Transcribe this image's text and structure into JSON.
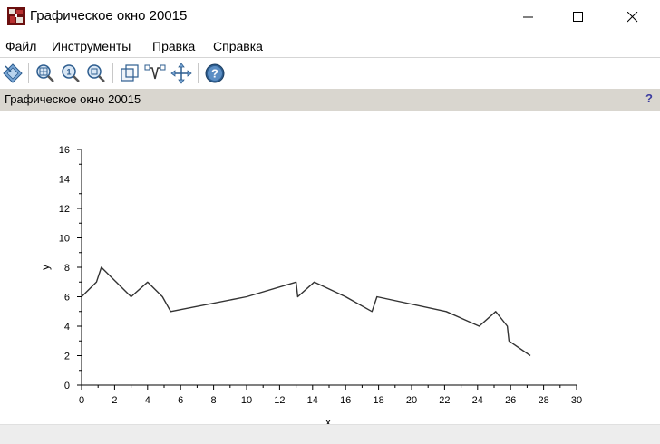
{
  "window": {
    "title": "Графическое окно 20015"
  },
  "menu": {
    "items": [
      "Файл",
      "Инструменты",
      "Правка",
      "Справка"
    ]
  },
  "toolbar": {
    "icons": [
      "select-icon",
      "zoom-region-icon",
      "zoom-restore-icon",
      "zoom-icon",
      "rotate-icon",
      "datatip-icon",
      "pan-icon",
      "help-icon"
    ]
  },
  "figure": {
    "title": "Графическое окно 20015",
    "help_label": "?"
  },
  "chart_data": {
    "type": "line",
    "xlabel": "x",
    "ylabel": "y",
    "xlim": [
      0,
      30
    ],
    "ylim": [
      0,
      16
    ],
    "xticks": [
      "0",
      "2",
      "4",
      "6",
      "8",
      "10",
      "12",
      "14",
      "16",
      "18",
      "20",
      "22",
      "24",
      "26",
      "28",
      "30"
    ],
    "yticks": [
      "0",
      "2",
      "4",
      "6",
      "8",
      "10",
      "12",
      "14",
      "16"
    ],
    "grid": false,
    "series": [
      {
        "x": [
          0,
          0.9,
          1.2,
          2.1,
          3.0,
          4.0,
          4.9,
          5.4,
          10.0,
          13.0,
          13.1,
          14.1,
          16.0,
          17.6,
          17.9,
          22.1,
          24.1,
          25.1,
          25.8,
          25.9,
          27.2
        ],
        "y": [
          6,
          7,
          8,
          7,
          6,
          7,
          6,
          5,
          6,
          7,
          6,
          7,
          6,
          5,
          6,
          5,
          4,
          5,
          4,
          3,
          2
        ]
      }
    ],
    "colors": {
      "line": "#333333",
      "axis": "#000000"
    }
  }
}
